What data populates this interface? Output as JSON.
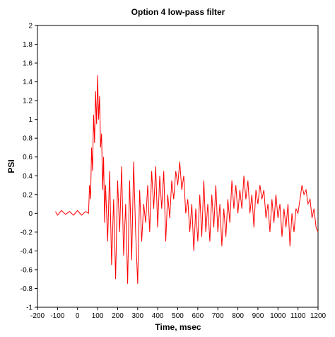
{
  "chart_data": {
    "type": "line",
    "title": "Option 4 low-pass filter",
    "xlabel": "Time, msec",
    "ylabel": "PSI",
    "xlim": [
      -200,
      1200
    ],
    "ylim": [
      -1,
      2
    ],
    "x_ticks": [
      "-200",
      "-100",
      "0",
      "100",
      "200",
      "300",
      "400",
      "500",
      "600",
      "700",
      "800",
      "900",
      "1000",
      "1100",
      "1200"
    ],
    "y_ticks": [
      "-1",
      "-0.8",
      "-0.6",
      "-0.4",
      "-0.2",
      "0",
      "0.2",
      "0.4",
      "0.6",
      "0.8",
      "1",
      "1.2",
      "1.4",
      "1.6",
      "1.8",
      "2"
    ],
    "grid": false,
    "legend": "none",
    "series": [
      {
        "color": "#ff0000",
        "x": [
          -110,
          -100,
          -80,
          -60,
          -40,
          -20,
          0,
          20,
          40,
          55,
          60,
          65,
          70,
          75,
          80,
          85,
          90,
          95,
          100,
          105,
          110,
          115,
          120,
          125,
          130,
          135,
          140,
          150,
          160,
          170,
          180,
          190,
          200,
          210,
          220,
          230,
          240,
          250,
          260,
          270,
          280,
          290,
          300,
          310,
          320,
          330,
          340,
          350,
          360,
          370,
          380,
          390,
          400,
          410,
          420,
          430,
          440,
          450,
          460,
          470,
          480,
          490,
          500,
          510,
          520,
          530,
          540,
          550,
          560,
          570,
          580,
          590,
          600,
          610,
          620,
          630,
          640,
          650,
          660,
          670,
          680,
          690,
          700,
          710,
          720,
          730,
          740,
          750,
          760,
          770,
          780,
          790,
          800,
          810,
          820,
          830,
          840,
          850,
          860,
          870,
          880,
          890,
          900,
          910,
          920,
          930,
          940,
          950,
          960,
          970,
          980,
          990,
          1000,
          1010,
          1020,
          1030,
          1040,
          1050,
          1060,
          1070,
          1080,
          1090,
          1100,
          1110,
          1120,
          1130,
          1140,
          1150,
          1160,
          1170,
          1180,
          1190,
          1200
        ],
        "values": [
          0.02,
          -0.02,
          0.03,
          -0.01,
          0.02,
          -0.02,
          0.03,
          -0.02,
          0.02,
          0.0,
          0.3,
          0.15,
          0.7,
          0.45,
          1.05,
          0.75,
          1.3,
          0.95,
          1.47,
          1.0,
          1.25,
          0.7,
          0.85,
          0.25,
          0.6,
          -0.1,
          0.3,
          -0.3,
          0.45,
          -0.55,
          0.15,
          -0.7,
          0.35,
          -0.2,
          0.5,
          -0.45,
          0.1,
          -0.75,
          0.35,
          -0.5,
          0.55,
          -0.2,
          -0.75,
          0.25,
          -0.3,
          0.1,
          -0.1,
          0.3,
          -0.2,
          0.45,
          0.05,
          0.5,
          -0.15,
          0.4,
          0.05,
          0.45,
          -0.3,
          0.2,
          -0.05,
          0.35,
          0.15,
          0.45,
          0.3,
          0.55,
          0.25,
          0.4,
          0.0,
          0.15,
          -0.2,
          0.1,
          -0.4,
          0.05,
          -0.3,
          0.2,
          -0.25,
          0.35,
          -0.2,
          0.1,
          -0.3,
          0.2,
          -0.15,
          0.3,
          -0.2,
          0.1,
          -0.35,
          0.05,
          -0.25,
          0.15,
          -0.1,
          0.35,
          0.05,
          0.3,
          0.0,
          0.25,
          0.05,
          0.4,
          0.15,
          0.35,
          0.0,
          0.2,
          -0.15,
          0.25,
          0.1,
          0.3,
          0.15,
          0.25,
          -0.05,
          0.1,
          -0.2,
          0.15,
          -0.1,
          0.2,
          -0.05,
          0.1,
          -0.25,
          0.05,
          -0.15,
          0.1,
          -0.35,
          0.0,
          -0.2,
          0.05,
          0.0,
          0.15,
          0.3,
          0.2,
          0.25,
          0.1,
          0.15,
          -0.05,
          0.05,
          -0.15,
          -0.2
        ]
      }
    ]
  }
}
